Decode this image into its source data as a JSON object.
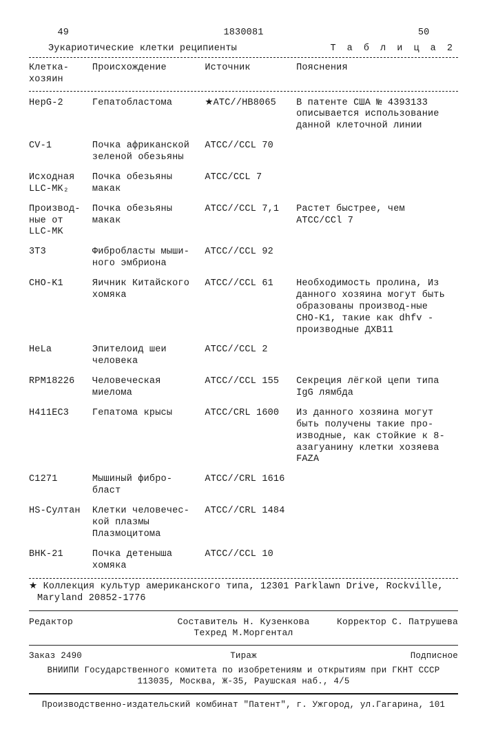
{
  "header": {
    "left_page": "49",
    "doc_no": "1830081",
    "right_page": "50",
    "caption": "Эукариотические клетки реципиенты",
    "table_label": "Т а б л и ц а 2"
  },
  "columns": [
    "Клетка-хозяин",
    "Происхождение",
    "Источник",
    "Пояснения"
  ],
  "rows": [
    {
      "host": "HepG-2",
      "origin": "Гепатобластома",
      "source": "★ATC//HB8065",
      "note": "В патенте США № 4393133 описывается использование данной клеточной линии"
    },
    {
      "host": "CV-1",
      "origin": "Почка африканской зеленой обезьяны",
      "source": "ATCC//CCL 70",
      "note": ""
    },
    {
      "host": "Исходная LLC-MK₂",
      "origin": "Почка обезьяны макак",
      "source": "ATCC/CCL 7",
      "note": ""
    },
    {
      "host": "Производ-ные от LLC-MK",
      "origin": "Почка обезьяны макак",
      "source": "ATCC//CCL 7,1",
      "note": "Растет быстрее, чем ATCC/CCl 7"
    },
    {
      "host": "3T3",
      "origin": "Фибробласты мыши-ного эмбриона",
      "source": "ATCC//CCL 92",
      "note": ""
    },
    {
      "host": "CHO-K1",
      "origin": "Яичник Китайского хомяка",
      "source": "ATCC//CCL 61",
      "note": "Необходимость пролина, Из данного хозяина могут быть образованы производ-ные CHO-K1, такие как dhfv - производные ДХВ11"
    },
    {
      "host": "HeLa",
      "origin": "Эпителоид шеи человека",
      "source": "ATCC//CCL 2",
      "note": ""
    },
    {
      "host": "RPM18226",
      "origin": "Человеческая миелома",
      "source": "ATCC//CCL 155",
      "note": "Секреция лёгкой цепи типа IgG лямбда"
    },
    {
      "host": "H411EC3",
      "origin": "Гепатома крысы",
      "source": "ATCC/CRL 1600",
      "note": "Из данного хозяина могут быть получены такие про-изводные, как стойкие к 8-азагуанину клетки хозяева FAZA"
    },
    {
      "host": "C1271",
      "origin": "Мышиный фибро-бласт",
      "source": "ATCC//CRL 1616",
      "note": ""
    },
    {
      "host": "HS-Султан",
      "origin": "Клетки человечес-кой плазмы Плазмоцитома",
      "source": "ATCC//CRL 1484",
      "note": ""
    },
    {
      "host": "BHK-21",
      "origin": "Почка детеныша хомяка",
      "source": "ATCC//CCL 10",
      "note": ""
    }
  ],
  "footnote": "★ Коллекция культур американского типа, 12301 Parklawn Drive, Rockville, Maryland 20852-1776",
  "pub": {
    "compiler": "Составитель Н. Кузенкова",
    "techred": "Техред М.Моргентал",
    "editor_lbl": "Редактор",
    "corrector": "Корректор С. Патрушева",
    "order": "Заказ 2490",
    "tirage": "Тираж",
    "sub": "Подписное",
    "vniipi": "ВНИИПИ Государственного комитета по изобретениям и открытиям при ГКНТ СССР",
    "addr1": "113035, Москва, Ж-35, Раушская наб., 4/5",
    "press": "Производственно-издательский комбинат \"Патент\", г. Ужгород, ул.Гагарина, 101"
  }
}
